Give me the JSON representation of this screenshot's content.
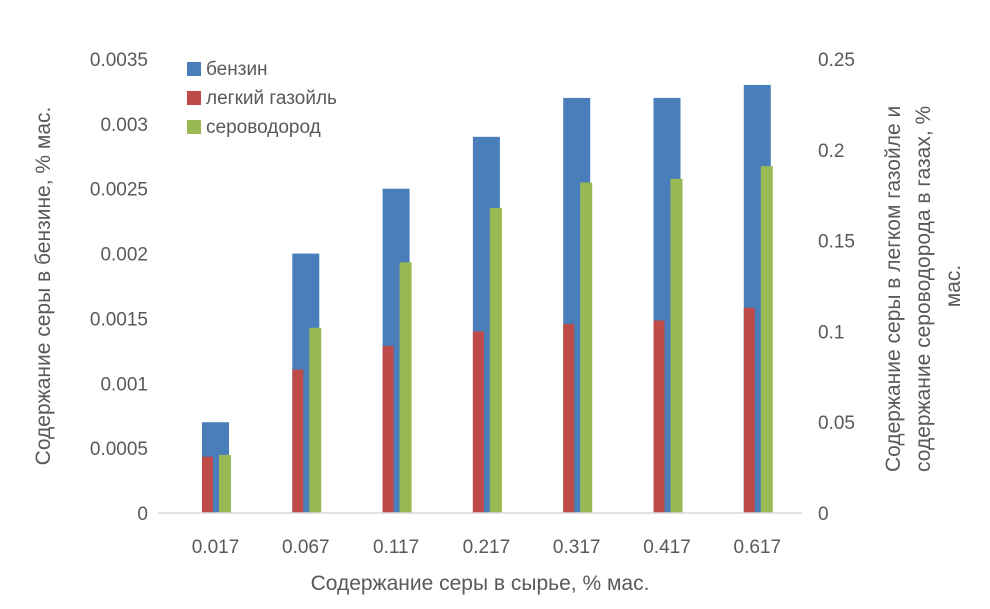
{
  "chart_data": {
    "type": "bar",
    "categories": [
      "0.017",
      "0.067",
      "0.117",
      "0.217",
      "0.317",
      "0.417",
      "0.617"
    ],
    "xlabel": "Содержание серы в сырье, % мас.",
    "ylabel": "Содержание серы в бензине, % мас.",
    "ylabel_right_lines": [
      "Содержание серы в легком газойле и",
      "содержание сероводорода в газах, %",
      "мас."
    ],
    "ylim": [
      0,
      0.0035
    ],
    "ylim_right": [
      0,
      0.25
    ],
    "yticks": [
      "0",
      "0.0005",
      "0.001",
      "0.0015",
      "0.002",
      "0.0025",
      "0.003",
      "0.0035"
    ],
    "yticks_right": [
      "0",
      "0.05",
      "0.1",
      "0.15",
      "0.2",
      "0.25"
    ],
    "grid": false,
    "legend_position": "top-left",
    "series": [
      {
        "name": "бензин",
        "axis": "left",
        "color": "#4a7ebb",
        "values": [
          0.0007,
          0.002,
          0.0025,
          0.0029,
          0.0032,
          0.0032,
          0.0033
        ]
      },
      {
        "name": "легкий газойль",
        "axis": "right",
        "color": "#be4b48",
        "values": [
          0.031,
          0.079,
          0.092,
          0.1,
          0.104,
          0.106,
          0.113
        ]
      },
      {
        "name": "сероводород",
        "axis": "right",
        "color": "#98b954",
        "values": [
          0.032,
          0.102,
          0.138,
          0.168,
          0.182,
          0.184,
          0.191
        ]
      }
    ]
  }
}
